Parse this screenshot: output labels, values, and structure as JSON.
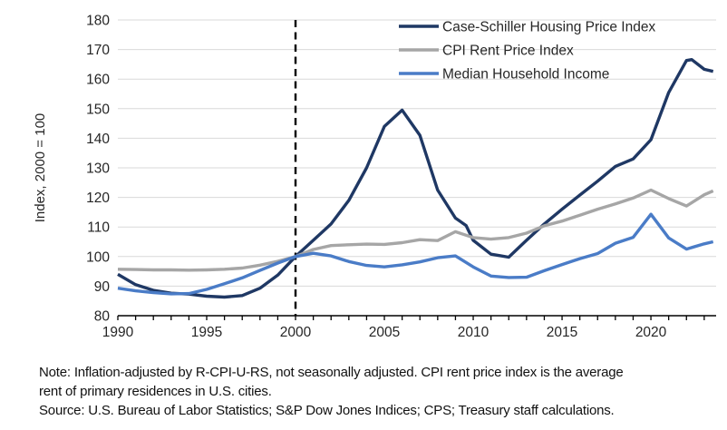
{
  "chart_data": {
    "type": "line",
    "title": "",
    "ylabel": "Index, 2000 = 100",
    "xlim": [
      1990,
      2023.67
    ],
    "ylim": [
      80,
      180
    ],
    "yticks": [
      80,
      90,
      100,
      110,
      120,
      130,
      140,
      150,
      160,
      170,
      180
    ],
    "xticks_labeled": [
      1990,
      1995,
      2000,
      2005,
      2010,
      2015,
      2020
    ],
    "xticks_minor": [
      1990,
      1991,
      1992,
      1993,
      1994,
      1995,
      1996,
      1997,
      1998,
      1999,
      2000,
      2001,
      2002,
      2003,
      2004,
      2005,
      2006,
      2007,
      2008,
      2009,
      2010,
      2011,
      2012,
      2013,
      2014,
      2015,
      2016,
      2017,
      2018,
      2019,
      2020,
      2021,
      2022,
      2023
    ],
    "grid": "horizontal",
    "gridline_color": "#D9D9D9",
    "axis_color": "#000000",
    "tick_label_color": "#262626",
    "reference_line": {
      "x": 2000,
      "style": "dashed",
      "color": "#000000"
    },
    "legend_position": "top-right",
    "series": [
      {
        "name": "Case-Schiller Housing Price Index",
        "color": "#1F3864",
        "points": [
          [
            1990,
            94
          ],
          [
            1991,
            90.5
          ],
          [
            1992,
            88.6
          ],
          [
            1993,
            87.6
          ],
          [
            1994,
            87.3
          ],
          [
            1995,
            86.6
          ],
          [
            1996,
            86.3
          ],
          [
            1997,
            86.8
          ],
          [
            1998,
            89.3
          ],
          [
            1999,
            93.7
          ],
          [
            2000,
            100
          ],
          [
            2001,
            105.5
          ],
          [
            2002,
            111
          ],
          [
            2003,
            119
          ],
          [
            2004,
            130
          ],
          [
            2005,
            144
          ],
          [
            2006,
            149.5
          ],
          [
            2007,
            141
          ],
          [
            2008,
            122.5
          ],
          [
            2009,
            113
          ],
          [
            2009.6,
            110.5
          ],
          [
            2010,
            105.5
          ],
          [
            2011,
            100.8
          ],
          [
            2011.5,
            100.3
          ],
          [
            2012,
            99.8
          ],
          [
            2013,
            105.5
          ],
          [
            2014,
            111
          ],
          [
            2015,
            116
          ],
          [
            2016,
            120.8
          ],
          [
            2017,
            125.5
          ],
          [
            2018,
            130.5
          ],
          [
            2019,
            133
          ],
          [
            2020,
            139.5
          ],
          [
            2021,
            155.5
          ],
          [
            2022,
            166.3
          ],
          [
            2022.3,
            166.6
          ],
          [
            2023,
            163.3
          ],
          [
            2023.5,
            162.6
          ]
        ]
      },
      {
        "name": "CPI Rent Price Index",
        "color": "#A6A6A6",
        "points": [
          [
            1990,
            95.7
          ],
          [
            1991,
            95.6
          ],
          [
            1992,
            95.5
          ],
          [
            1993,
            95.5
          ],
          [
            1994,
            95.4
          ],
          [
            1995,
            95.5
          ],
          [
            1996,
            95.7
          ],
          [
            1997,
            96.1
          ],
          [
            1998,
            97.1
          ],
          [
            1999,
            98.4
          ],
          [
            2000,
            100
          ],
          [
            2001,
            102.4
          ],
          [
            2002,
            103.7
          ],
          [
            2003,
            104
          ],
          [
            2004,
            104.2
          ],
          [
            2005,
            104.1
          ],
          [
            2006,
            104.7
          ],
          [
            2007,
            105.7
          ],
          [
            2008,
            105.4
          ],
          [
            2009,
            108.4
          ],
          [
            2010,
            106.4
          ],
          [
            2011,
            105.9
          ],
          [
            2012,
            106.4
          ],
          [
            2013,
            107.9
          ],
          [
            2014,
            110.4
          ],
          [
            2015,
            112
          ],
          [
            2016,
            114
          ],
          [
            2017,
            116
          ],
          [
            2018,
            117.8
          ],
          [
            2019,
            119.8
          ],
          [
            2020,
            122.5
          ],
          [
            2021,
            119.6
          ],
          [
            2022,
            117.1
          ],
          [
            2023,
            120.9
          ],
          [
            2023.5,
            122.2
          ]
        ]
      },
      {
        "name": "Median Household Income",
        "color": "#4A7CC7",
        "points": [
          [
            1990,
            89.3
          ],
          [
            1991,
            88.4
          ],
          [
            1992,
            87.8
          ],
          [
            1993,
            87.4
          ],
          [
            1994,
            87.5
          ],
          [
            1995,
            88.9
          ],
          [
            1996,
            90.8
          ],
          [
            1997,
            92.8
          ],
          [
            1998,
            95.3
          ],
          [
            1999,
            97.8
          ],
          [
            2000,
            100
          ],
          [
            2001,
            101.1
          ],
          [
            2002,
            100.2
          ],
          [
            2003,
            98.3
          ],
          [
            2004,
            97
          ],
          [
            2005,
            96.5
          ],
          [
            2006,
            97.2
          ],
          [
            2007,
            98.2
          ],
          [
            2008,
            99.6
          ],
          [
            2009,
            100.2
          ],
          [
            2010,
            96.5
          ],
          [
            2011,
            93.4
          ],
          [
            2012,
            92.9
          ],
          [
            2013,
            93
          ],
          [
            2014,
            95.2
          ],
          [
            2015,
            97.3
          ],
          [
            2016,
            99.3
          ],
          [
            2017,
            101
          ],
          [
            2018,
            104.5
          ],
          [
            2019,
            106.5
          ],
          [
            2020,
            114.3
          ],
          [
            2021,
            106.3
          ],
          [
            2022,
            102.5
          ],
          [
            2023,
            104.3
          ],
          [
            2023.5,
            105
          ]
        ]
      }
    ]
  },
  "notes": {
    "line1": "Note: Inflation-adjusted by R-CPI-U-RS, not seasonally adjusted. CPI rent price index is the average",
    "line2": "rent of primary residences in U.S. cities.",
    "source": "Source: U.S. Bureau of Labor Statistics; S&P Dow Jones Indices; CPS; Treasury staff calculations."
  }
}
